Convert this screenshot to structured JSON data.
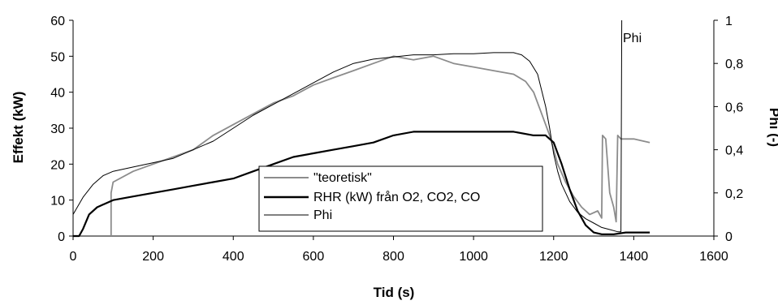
{
  "chart_data": {
    "type": "line",
    "xlabel": "Tid (s)",
    "ylabel": "Effekt (kW)",
    "y2label": "Phi (-)",
    "xlim": [
      0,
      1600
    ],
    "ylim": [
      0,
      60
    ],
    "y2lim": [
      0,
      1
    ],
    "xticks": [
      "0",
      "200",
      "400",
      "600",
      "800",
      "1000",
      "1200",
      "1400",
      "1600"
    ],
    "yticks": [
      "0",
      "10",
      "20",
      "30",
      "40",
      "50",
      "60"
    ],
    "y2ticks": [
      "0",
      "0,2",
      "0,4",
      "0,6",
      "0,8",
      "1"
    ],
    "grid": false,
    "legend_position": "lower-center",
    "annotation": "Phi",
    "series": [
      {
        "name": "\"teoretisk\"",
        "axis": "left",
        "color": "#8c8c8c",
        "x": [
          95,
          95,
          100,
          150,
          200,
          250,
          300,
          350,
          400,
          450,
          500,
          550,
          600,
          650,
          700,
          750,
          800,
          850,
          900,
          950,
          1000,
          1050,
          1100,
          1130,
          1150,
          1170,
          1190,
          1200,
          1210,
          1230,
          1250,
          1270,
          1290,
          1310,
          1320,
          1322,
          1330,
          1340,
          1350,
          1356,
          1360,
          1368,
          1380,
          1400,
          1420,
          1440
        ],
        "y": [
          0,
          12,
          15,
          18,
          20,
          22,
          24,
          28,
          31,
          34,
          37,
          39,
          42,
          44,
          46,
          48,
          50,
          49,
          50,
          48,
          47,
          46,
          45,
          43,
          40,
          34,
          28,
          24,
          20,
          15,
          11,
          8,
          6,
          7,
          5,
          28,
          27,
          12,
          8,
          4,
          28,
          27,
          27,
          27,
          26.5,
          26
        ]
      },
      {
        "name": "RHR (kW) från O2, CO2, CO",
        "axis": "left",
        "color": "#000000",
        "x": [
          0,
          15,
          25,
          40,
          60,
          80,
          100,
          150,
          200,
          250,
          300,
          350,
          400,
          450,
          500,
          550,
          600,
          650,
          700,
          750,
          800,
          850,
          900,
          950,
          1000,
          1050,
          1100,
          1150,
          1180,
          1200,
          1220,
          1240,
          1260,
          1280,
          1300,
          1320,
          1350,
          1380,
          1400,
          1440
        ],
        "y": [
          0,
          0,
          2,
          6,
          8,
          9,
          10,
          11,
          12,
          13,
          14,
          15,
          16,
          18,
          20,
          22,
          23,
          24,
          25,
          26,
          28,
          29,
          29,
          29,
          29,
          29,
          29,
          28,
          28,
          26,
          20,
          13,
          7,
          3,
          1,
          0.5,
          0.5,
          1,
          1,
          1
        ]
      },
      {
        "name": "Phi",
        "axis": "right",
        "color": "#000000",
        "x": [
          0,
          25,
          50,
          75,
          100,
          150,
          200,
          250,
          300,
          350,
          400,
          450,
          500,
          550,
          600,
          650,
          700,
          750,
          800,
          850,
          900,
          950,
          1000,
          1050,
          1080,
          1100,
          1120,
          1140,
          1160,
          1180,
          1190,
          1200,
          1210,
          1220,
          1240,
          1260,
          1280,
          1300,
          1320,
          1340,
          1360,
          1368,
          1370
        ],
        "y": [
          0.1,
          0.18,
          0.24,
          0.28,
          0.3,
          0.32,
          0.34,
          0.36,
          0.4,
          0.44,
          0.5,
          0.56,
          0.61,
          0.66,
          0.71,
          0.76,
          0.8,
          0.82,
          0.83,
          0.84,
          0.84,
          0.845,
          0.845,
          0.85,
          0.85,
          0.85,
          0.84,
          0.81,
          0.75,
          0.6,
          0.5,
          0.38,
          0.3,
          0.24,
          0.16,
          0.11,
          0.08,
          0.06,
          0.04,
          0.03,
          0.02,
          0.02,
          1
        ]
      }
    ]
  }
}
